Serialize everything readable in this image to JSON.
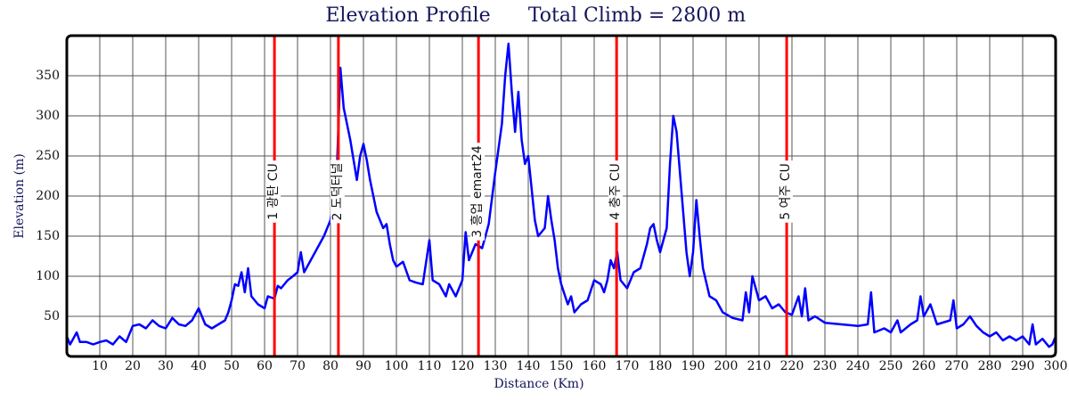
{
  "chart_data": {
    "type": "line",
    "title": "Elevation Profile",
    "subtitle": "Total Climb = 2800 m",
    "xlabel": "Distance (Km)",
    "ylabel": "Elevation (m)",
    "xlim": [
      0,
      300
    ],
    "ylim": [
      0,
      400
    ],
    "xticks": [
      10,
      20,
      30,
      40,
      50,
      60,
      70,
      80,
      90,
      100,
      110,
      120,
      130,
      140,
      150,
      160,
      170,
      180,
      190,
      200,
      210,
      220,
      230,
      240,
      250,
      260,
      270,
      280,
      290,
      300
    ],
    "yticks": [
      50,
      100,
      150,
      200,
      250,
      300,
      350
    ],
    "grid": true,
    "series": [
      {
        "color": "#0000ff",
        "x": [
          0,
          1,
          3,
          4,
          6,
          8,
          10,
          12,
          14,
          16,
          18,
          20,
          22,
          24,
          26,
          28,
          30,
          32,
          34,
          36,
          38,
          40,
          42,
          44,
          46,
          48,
          49,
          50,
          51,
          52,
          53,
          54,
          55,
          56,
          58,
          60,
          61,
          63,
          64,
          65,
          67,
          68,
          70,
          71,
          72,
          74,
          76,
          78,
          80,
          81,
          82,
          82.5,
          83,
          84,
          86,
          88,
          89,
          90,
          91,
          92,
          94,
          96,
          97,
          98,
          99,
          100,
          102,
          104,
          106,
          108,
          110,
          111,
          113,
          115,
          116,
          118,
          120,
          121,
          122,
          124,
          126,
          128,
          130,
          132,
          133,
          134,
          135,
          136,
          137,
          138,
          139,
          140,
          142,
          143,
          145,
          146,
          147,
          148,
          149,
          150,
          152,
          153,
          154,
          156,
          158,
          160,
          162,
          163,
          164,
          165,
          166,
          167,
          168,
          170,
          172,
          174,
          176,
          177,
          178,
          179,
          180,
          182,
          183,
          184,
          185,
          186,
          187,
          188,
          189,
          190,
          191,
          192,
          193,
          195,
          197,
          199,
          202,
          205,
          206,
          207,
          208,
          210,
          212,
          214,
          216,
          218,
          220,
          222,
          223,
          224,
          225,
          227,
          230,
          235,
          240,
          243,
          244,
          245,
          248,
          250,
          252,
          253,
          256,
          258,
          259,
          260,
          262,
          264,
          268,
          269,
          270,
          272,
          274,
          276,
          278,
          280,
          282,
          284,
          286,
          288,
          290,
          292,
          293,
          294,
          296,
          298,
          299,
          300
        ],
        "values": [
          25,
          15,
          30,
          18,
          18,
          15,
          18,
          20,
          15,
          25,
          18,
          38,
          40,
          35,
          45,
          38,
          35,
          48,
          40,
          38,
          45,
          60,
          40,
          35,
          40,
          45,
          55,
          70,
          90,
          88,
          105,
          80,
          110,
          75,
          65,
          60,
          75,
          72,
          88,
          85,
          95,
          98,
          105,
          130,
          105,
          120,
          135,
          150,
          170,
          200,
          240,
          300,
          360,
          310,
          270,
          220,
          250,
          265,
          245,
          220,
          180,
          160,
          165,
          140,
          120,
          112,
          118,
          95,
          92,
          90,
          145,
          95,
          90,
          75,
          90,
          75,
          95,
          155,
          120,
          140,
          135,
          165,
          230,
          290,
          350,
          390,
          330,
          280,
          330,
          270,
          240,
          250,
          170,
          150,
          160,
          200,
          170,
          145,
          110,
          90,
          65,
          75,
          55,
          65,
          70,
          95,
          90,
          80,
          95,
          120,
          110,
          130,
          95,
          85,
          105,
          110,
          140,
          160,
          165,
          145,
          130,
          160,
          240,
          300,
          280,
          230,
          180,
          130,
          100,
          130,
          195,
          150,
          110,
          75,
          70,
          55,
          48,
          45,
          80,
          55,
          100,
          70,
          75,
          60,
          65,
          55,
          52,
          75,
          50,
          85,
          45,
          50,
          42,
          40,
          38,
          40,
          80,
          30,
          35,
          30,
          45,
          30,
          40,
          45,
          75,
          50,
          65,
          40,
          45,
          70,
          35,
          40,
          50,
          38,
          30,
          25,
          30,
          20,
          25,
          20,
          25,
          15,
          40,
          15,
          22,
          12,
          15,
          25
        ]
      }
    ],
    "markers": [
      {
        "x": 63,
        "label": "1 광탄 CU"
      },
      {
        "x": 82.4,
        "label": "2 도덕터널"
      },
      {
        "x": 124.9,
        "label": "3 흥업 emart24"
      },
      {
        "x": 166.8,
        "label": "4 충주 CU"
      },
      {
        "x": 218.4,
        "label": "5 여주 CU"
      }
    ],
    "marker_color": "#ff0000"
  }
}
